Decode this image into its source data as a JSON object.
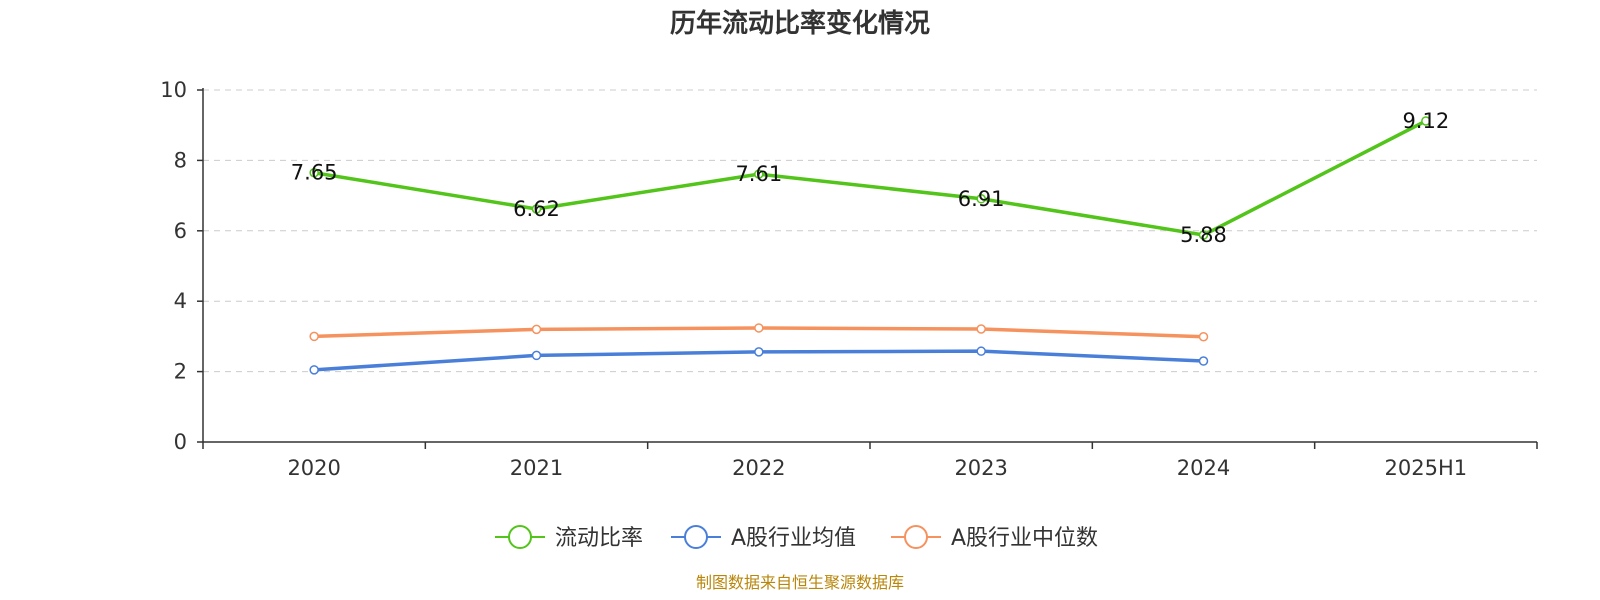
{
  "chart_data": {
    "type": "line",
    "title": "历年流动比率变化情况",
    "categories": [
      "2020",
      "2021",
      "2022",
      "2023",
      "2024",
      "2025H1"
    ],
    "ylim": [
      0,
      10
    ],
    "yticks": [
      0,
      2,
      4,
      6,
      8,
      10
    ],
    "grid": true,
    "legend_position": "bottom",
    "series": [
      {
        "name": "流动比率",
        "color": "#52c41a",
        "values": [
          7.65,
          6.62,
          7.61,
          6.91,
          5.88,
          9.12
        ],
        "labels": [
          "7.65",
          "6.62",
          "7.61",
          "6.91",
          "5.88",
          "9.12"
        ]
      },
      {
        "name": "A股行业均值",
        "color": "#4a7fd9",
        "values": [
          2.05,
          2.46,
          2.56,
          2.58,
          2.3,
          null
        ]
      },
      {
        "name": "A股行业中位数",
        "color": "#f5925e",
        "values": [
          3.0,
          3.2,
          3.24,
          3.21,
          2.99,
          null
        ]
      }
    ],
    "source": "制图数据来自恒生聚源数据库"
  }
}
